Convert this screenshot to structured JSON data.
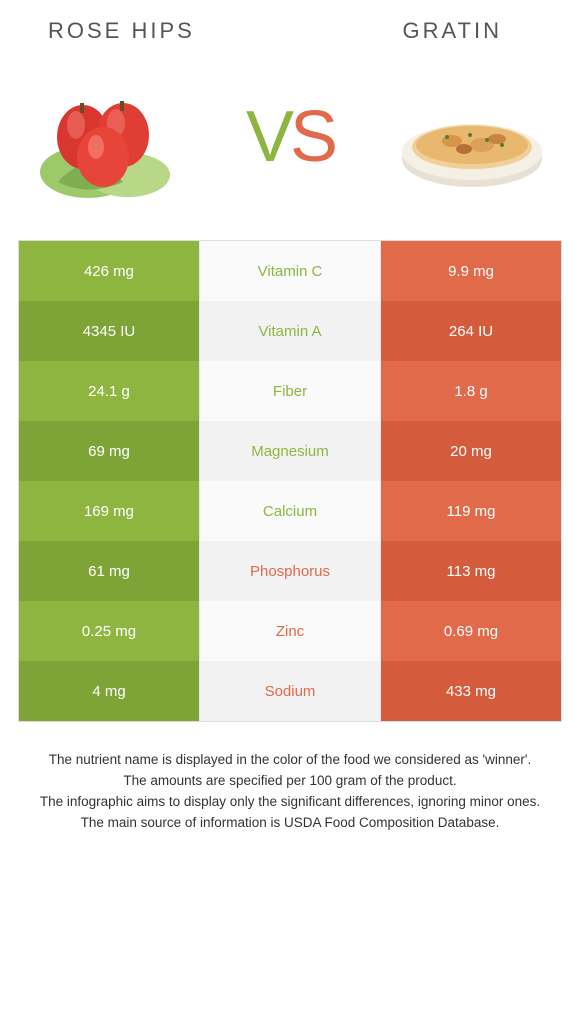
{
  "food_left": {
    "title": "Rose hips",
    "color": "#8fb541",
    "color_alt": "#7ea337"
  },
  "food_right": {
    "title": "Gratin",
    "color": "#e06a4a",
    "color_alt": "#d45c3c"
  },
  "vs_label_v": "V",
  "vs_label_s": "S",
  "nutrients": [
    {
      "name": "Vitamin C",
      "left": "426 mg",
      "right": "9.9 mg",
      "winner": "left"
    },
    {
      "name": "Vitamin A",
      "left": "4345 IU",
      "right": "264 IU",
      "winner": "left"
    },
    {
      "name": "Fiber",
      "left": "24.1 g",
      "right": "1.8 g",
      "winner": "left"
    },
    {
      "name": "Magnesium",
      "left": "69 mg",
      "right": "20 mg",
      "winner": "left"
    },
    {
      "name": "Calcium",
      "left": "169 mg",
      "right": "119 mg",
      "winner": "left"
    },
    {
      "name": "Phosphorus",
      "left": "61 mg",
      "right": "113 mg",
      "winner": "right"
    },
    {
      "name": "Zinc",
      "left": "0.25 mg",
      "right": "0.69 mg",
      "winner": "right"
    },
    {
      "name": "Sodium",
      "left": "4 mg",
      "right": "433 mg",
      "winner": "right"
    }
  ],
  "footer": {
    "line1": "The nutrient name is displayed in the color of the food we considered as 'winner'.",
    "line2": "The amounts are specified per 100 gram of the product.",
    "line3": "The infographic aims to display only the significant differences, ignoring minor ones.",
    "line4": "The main source of information is USDA Food Composition Database."
  }
}
